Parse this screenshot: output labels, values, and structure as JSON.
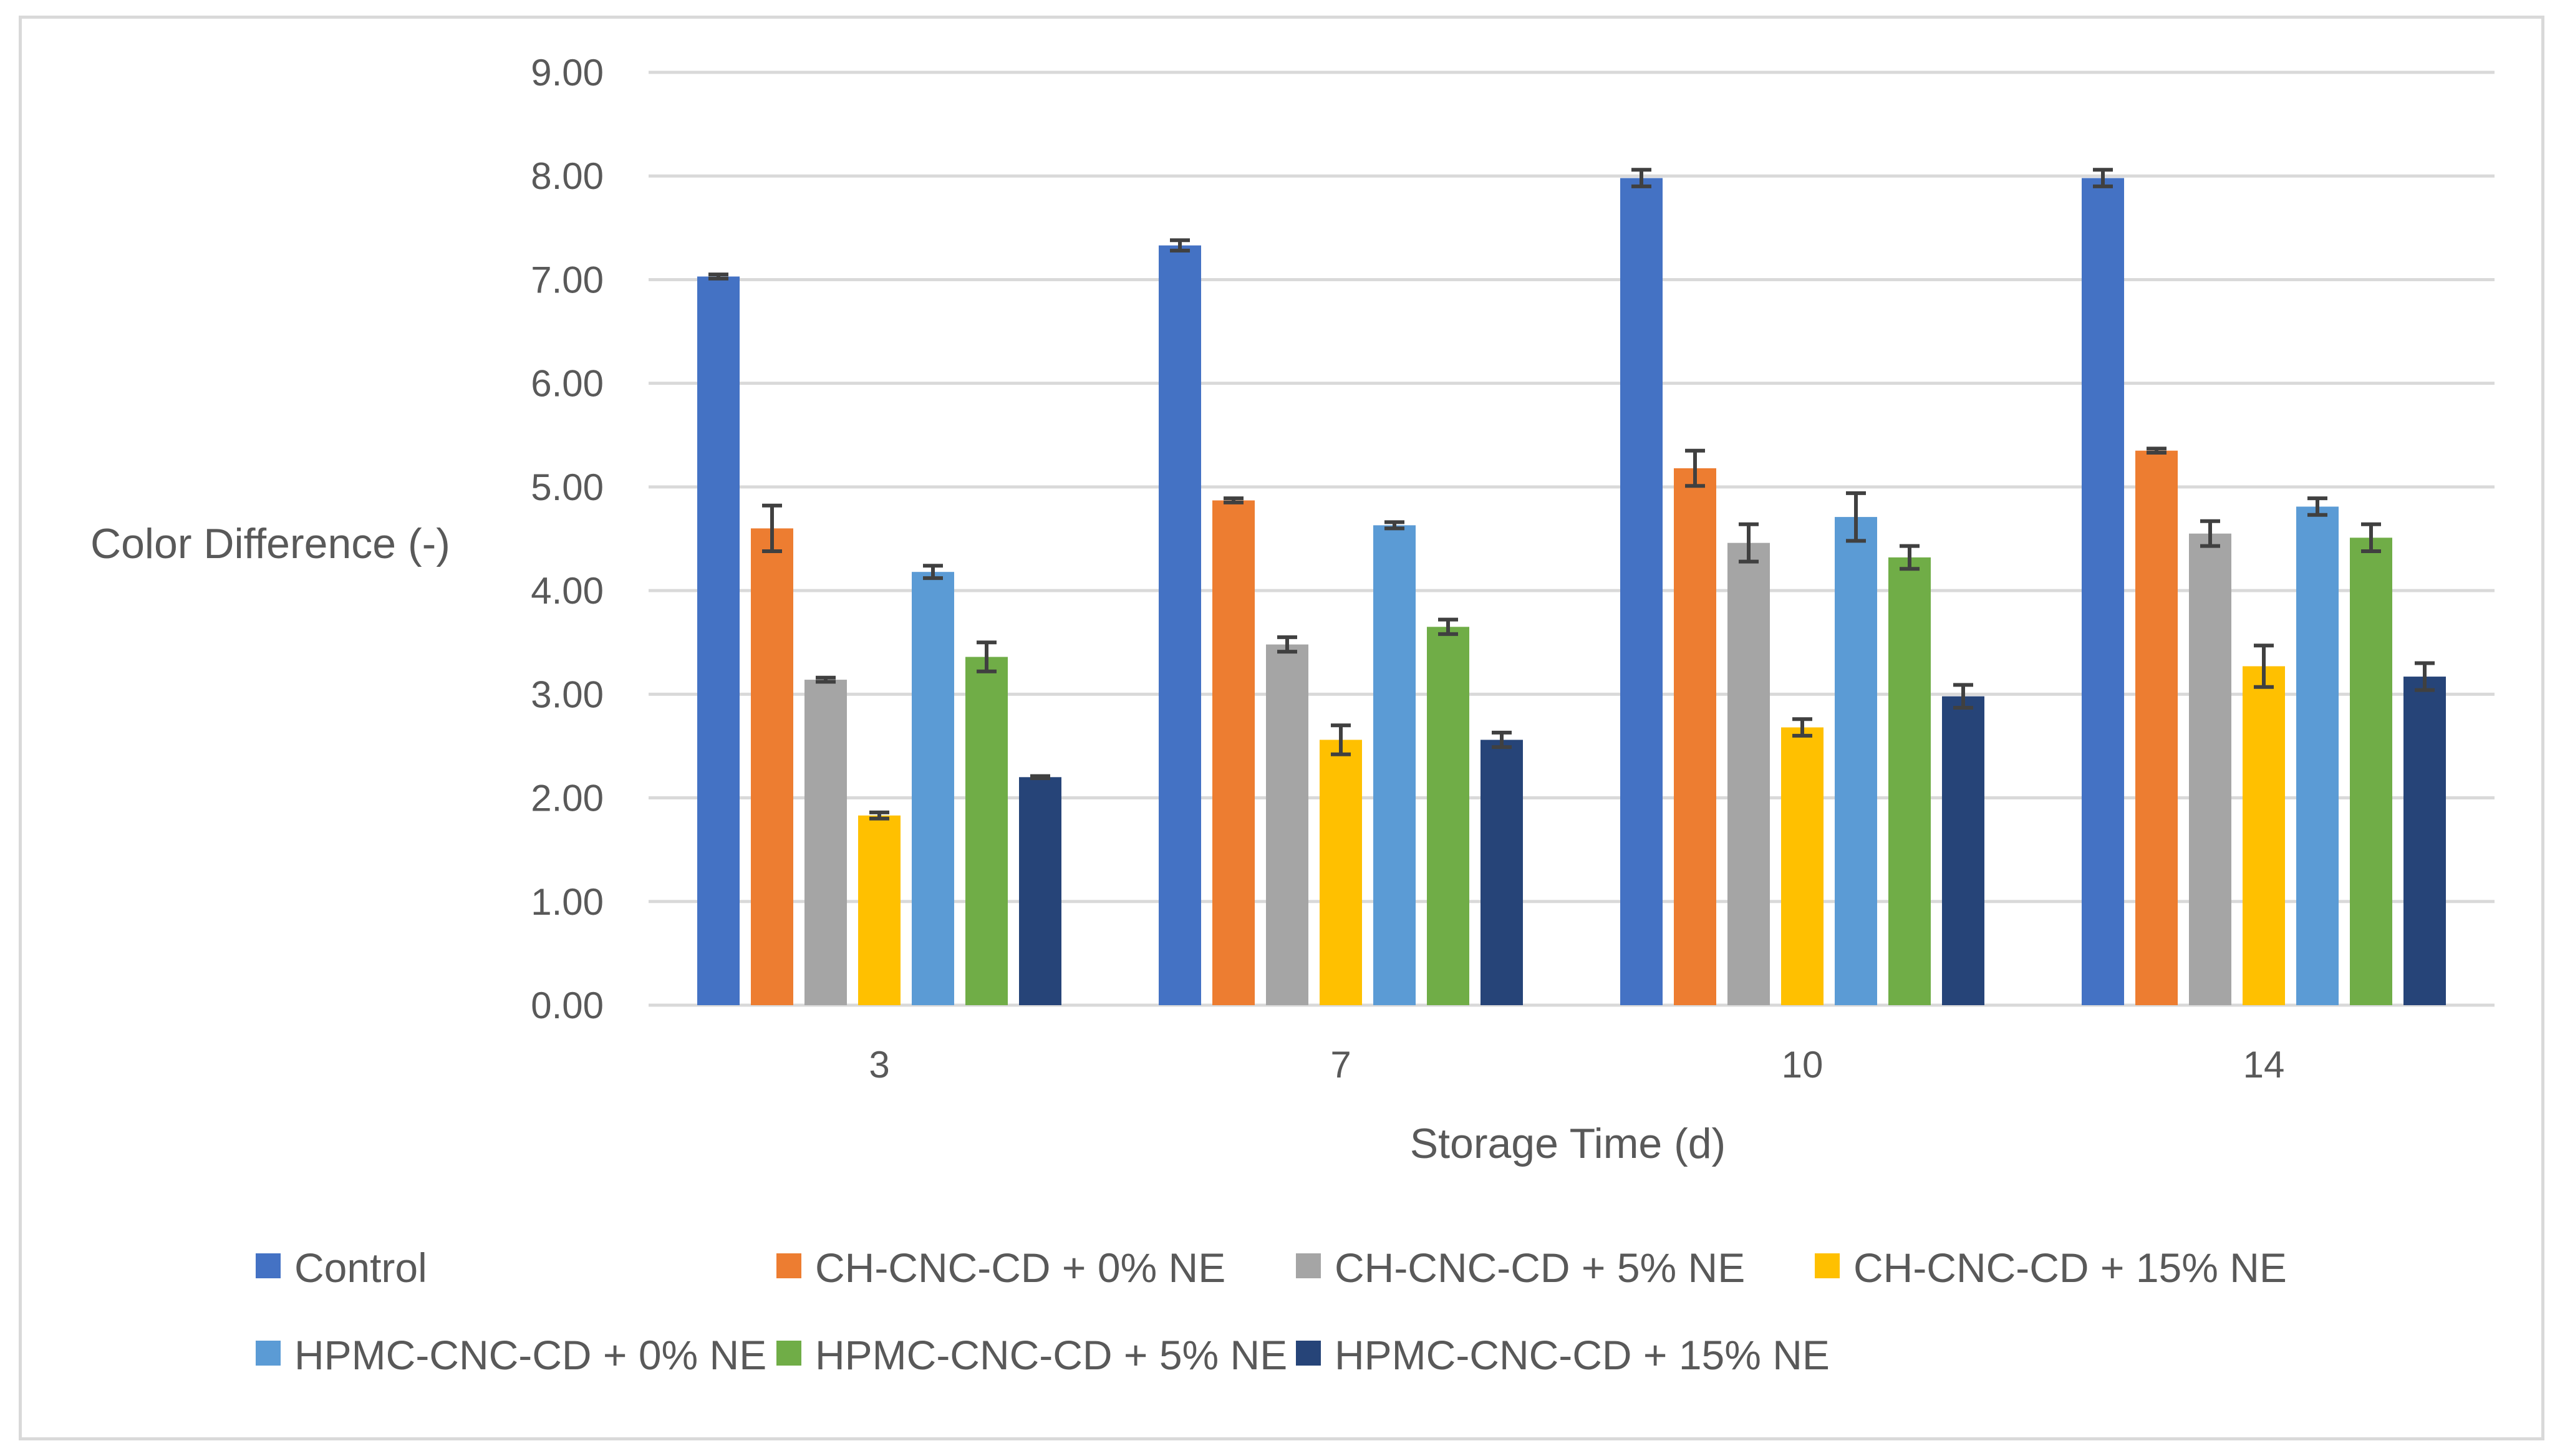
{
  "chart_data": {
    "type": "bar",
    "title": "",
    "xlabel": "Storage Time (d)",
    "ylabel": "Color Difference (-)",
    "ylim": [
      0,
      9
    ],
    "ytick_step": 1,
    "ytick_labels": [
      "0.00",
      "1.00",
      "2.00",
      "3.00",
      "4.00",
      "5.00",
      "6.00",
      "7.00",
      "8.00",
      "9.00"
    ],
    "grid": true,
    "legend_position": "bottom",
    "categories": [
      "3",
      "7",
      "10",
      "14"
    ],
    "series": [
      {
        "name": "Control",
        "color": "#4472C4",
        "values": [
          7.03,
          7.33,
          7.98,
          7.98
        ],
        "errors": [
          0.02,
          0.05,
          0.08,
          0.08
        ]
      },
      {
        "name": "CH-CNC-CD + 0% NE",
        "color": "#ED7D31",
        "values": [
          4.6,
          4.87,
          5.18,
          5.35
        ],
        "errors": [
          0.22,
          0.02,
          0.17,
          0.02
        ]
      },
      {
        "name": "CH-CNC-CD + 5% NE",
        "color": "#A5A5A5",
        "values": [
          3.14,
          3.48,
          4.46,
          4.55
        ],
        "errors": [
          0.02,
          0.07,
          0.18,
          0.12
        ]
      },
      {
        "name": "CH-CNC-CD + 15% NE",
        "color": "#FFC000",
        "values": [
          1.83,
          2.56,
          2.68,
          3.27
        ],
        "errors": [
          0.03,
          0.14,
          0.08,
          0.2
        ]
      },
      {
        "name": "HPMC-CNC-CD + 0% NE",
        "color": "#5B9BD5",
        "values": [
          4.18,
          4.63,
          4.71,
          4.81
        ],
        "errors": [
          0.06,
          0.03,
          0.23,
          0.08
        ]
      },
      {
        "name": "HPMC-CNC-CD + 5% NE",
        "color": "#70AD47",
        "values": [
          3.36,
          3.65,
          4.32,
          4.51
        ],
        "errors": [
          0.14,
          0.07,
          0.11,
          0.13
        ]
      },
      {
        "name": "HPMC-CNC-CD + 15% NE",
        "color": "#264478",
        "values": [
          2.2,
          2.56,
          2.98,
          3.17
        ],
        "errors": [
          0.01,
          0.07,
          0.11,
          0.13
        ]
      }
    ]
  }
}
